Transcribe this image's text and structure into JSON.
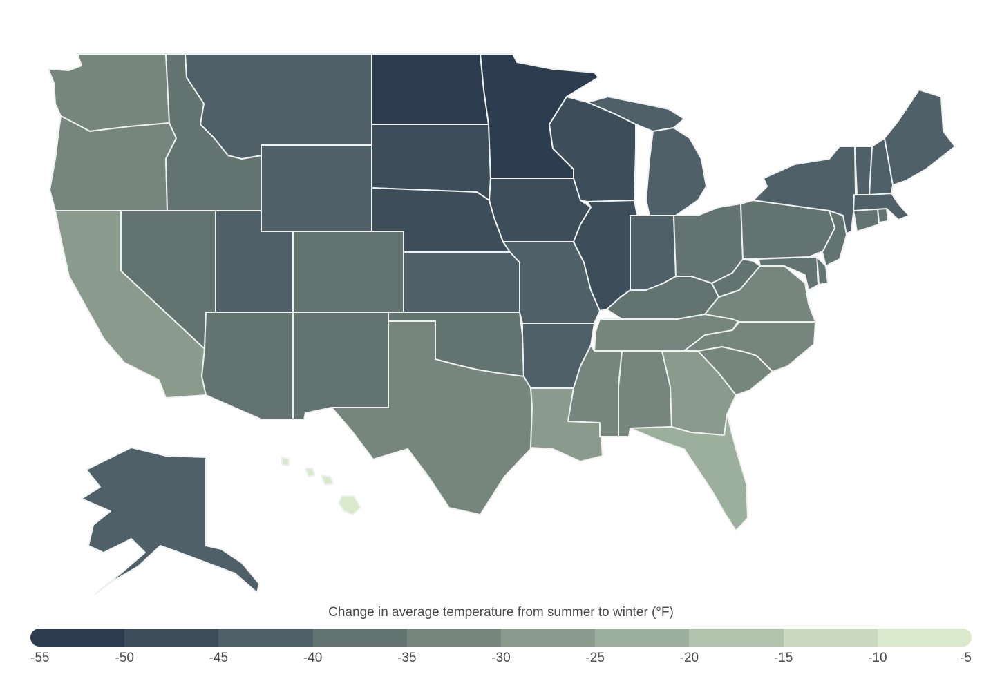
{
  "legend": {
    "title": "Change in average temperature from summer to winter (°F)",
    "ticks": [
      "-55",
      "-50",
      "-45",
      "-40",
      "-35",
      "-30",
      "-25",
      "-20",
      "-15",
      "-10",
      "-5"
    ],
    "colors": [
      "#2d3c4e",
      "#3e4d5a",
      "#506068",
      "#637370",
      "#76857d",
      "#8a9a8c",
      "#9caf9c",
      "#b2c4ad",
      "#c8d9bf",
      "#dae9cc"
    ]
  },
  "chart_data": {
    "type": "choropleth",
    "title": "Change in average temperature from summer to winter (°F)",
    "scale": {
      "min": -55,
      "max": -5,
      "step": 5
    },
    "states": [
      {
        "state": "WA",
        "bin": [
          -35,
          -30
        ]
      },
      {
        "state": "OR",
        "bin": [
          -35,
          -30
        ]
      },
      {
        "state": "CA",
        "bin": [
          -30,
          -25
        ]
      },
      {
        "state": "ID",
        "bin": [
          -40,
          -35
        ]
      },
      {
        "state": "NV",
        "bin": [
          -40,
          -35
        ]
      },
      {
        "state": "MT",
        "bin": [
          -45,
          -40
        ]
      },
      {
        "state": "WY",
        "bin": [
          -45,
          -40
        ]
      },
      {
        "state": "UT",
        "bin": [
          -45,
          -40
        ]
      },
      {
        "state": "AZ",
        "bin": [
          -40,
          -35
        ]
      },
      {
        "state": "CO",
        "bin": [
          -40,
          -35
        ]
      },
      {
        "state": "NM",
        "bin": [
          -40,
          -35
        ]
      },
      {
        "state": "ND",
        "bin": [
          -55,
          -50
        ]
      },
      {
        "state": "SD",
        "bin": [
          -50,
          -45
        ]
      },
      {
        "state": "NE",
        "bin": [
          -50,
          -45
        ]
      },
      {
        "state": "KS",
        "bin": [
          -45,
          -40
        ]
      },
      {
        "state": "OK",
        "bin": [
          -40,
          -35
        ]
      },
      {
        "state": "TX",
        "bin": [
          -35,
          -30
        ]
      },
      {
        "state": "MN",
        "bin": [
          -55,
          -50
        ]
      },
      {
        "state": "IA",
        "bin": [
          -50,
          -45
        ]
      },
      {
        "state": "MO",
        "bin": [
          -45,
          -40
        ]
      },
      {
        "state": "AR",
        "bin": [
          -45,
          -40
        ]
      },
      {
        "state": "LA",
        "bin": [
          -30,
          -25
        ]
      },
      {
        "state": "WI",
        "bin": [
          -50,
          -45
        ]
      },
      {
        "state": "IL",
        "bin": [
          -50,
          -45
        ]
      },
      {
        "state": "MI",
        "bin": [
          -45,
          -40
        ]
      },
      {
        "state": "IN",
        "bin": [
          -45,
          -40
        ]
      },
      {
        "state": "OH",
        "bin": [
          -40,
          -35
        ]
      },
      {
        "state": "KY",
        "bin": [
          -40,
          -35
        ]
      },
      {
        "state": "TN",
        "bin": [
          -35,
          -30
        ]
      },
      {
        "state": "MS",
        "bin": [
          -35,
          -30
        ]
      },
      {
        "state": "AL",
        "bin": [
          -35,
          -30
        ]
      },
      {
        "state": "GA",
        "bin": [
          -30,
          -25
        ]
      },
      {
        "state": "FL",
        "bin": [
          -25,
          -20
        ]
      },
      {
        "state": "SC",
        "bin": [
          -35,
          -30
        ]
      },
      {
        "state": "NC",
        "bin": [
          -35,
          -30
        ]
      },
      {
        "state": "VA",
        "bin": [
          -35,
          -30
        ]
      },
      {
        "state": "WV",
        "bin": [
          -40,
          -35
        ]
      },
      {
        "state": "PA",
        "bin": [
          -40,
          -35
        ]
      },
      {
        "state": "NY",
        "bin": [
          -45,
          -40
        ]
      },
      {
        "state": "NJ",
        "bin": [
          -40,
          -35
        ]
      },
      {
        "state": "DE",
        "bin": [
          -40,
          -35
        ]
      },
      {
        "state": "MD",
        "bin": [
          -40,
          -35
        ]
      },
      {
        "state": "CT",
        "bin": [
          -40,
          -35
        ]
      },
      {
        "state": "RI",
        "bin": [
          -40,
          -35
        ]
      },
      {
        "state": "MA",
        "bin": [
          -45,
          -40
        ]
      },
      {
        "state": "VT",
        "bin": [
          -45,
          -40
        ]
      },
      {
        "state": "NH",
        "bin": [
          -45,
          -40
        ]
      },
      {
        "state": "ME",
        "bin": [
          -45,
          -40
        ]
      },
      {
        "state": "AK",
        "bin": [
          -45,
          -40
        ]
      },
      {
        "state": "HI",
        "bin": [
          -10,
          -5
        ]
      }
    ]
  }
}
